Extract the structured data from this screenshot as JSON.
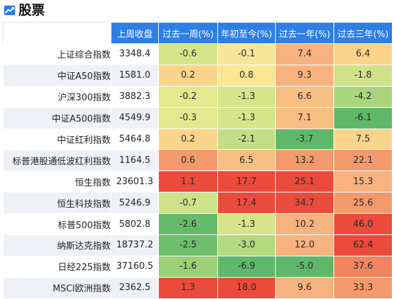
{
  "header": {
    "icon": "trend-chart-icon",
    "title": "股票"
  },
  "table": {
    "columns": [
      "上周收盘",
      "过去一周(%)",
      "年初至今(%)",
      "过去一年(%)",
      "过去三年(%)"
    ],
    "rows": [
      {
        "name": "上证综合指数",
        "close": "3348.4",
        "values": [
          "-0.6",
          "-0.1",
          "7.4",
          "6.4"
        ],
        "colors": [
          "#d7e58a",
          "#f6e69a",
          "#f8b27f",
          "#fbd48c"
        ]
      },
      {
        "name": "中证A50指数",
        "close": "1581.0",
        "values": [
          "0.2",
          "0.8",
          "9.3",
          "-1.8"
        ],
        "colors": [
          "#fbd48c",
          "#f9e796",
          "#f8b27f",
          "#cfe28a"
        ]
      },
      {
        "name": "沪深300指数",
        "close": "3882.3",
        "values": [
          "-0.2",
          "-1.3",
          "6.6",
          "-4.2"
        ],
        "colors": [
          "#e3e98f",
          "#d7e58a",
          "#f8bf82",
          "#a9d67c"
        ]
      },
      {
        "name": "中证A500指数",
        "close": "4549.9",
        "values": [
          "-0.3",
          "-1.3",
          "7.1",
          "-6.1"
        ],
        "colors": [
          "#e3e98f",
          "#d7e58a",
          "#f8bf82",
          "#5fb86a"
        ]
      },
      {
        "name": "中证红利指数",
        "close": "5464.8",
        "values": [
          "0.2",
          "-2.1",
          "-3.7",
          "7.5"
        ],
        "colors": [
          "#fbd48c",
          "#c3de86",
          "#5fb86a",
          "#fbd48c"
        ]
      },
      {
        "name": "标普港股通低波红利指数",
        "close": "1164.5",
        "values": [
          "0.6",
          "6.5",
          "13.2",
          "22.1"
        ],
        "colors": [
          "#f39a6c",
          "#f8bf82",
          "#f39a6c",
          "#f39a6c"
        ]
      },
      {
        "name": "恒生指数",
        "close": "23601.3",
        "values": [
          "1.1",
          "17.7",
          "25.1",
          "15.3"
        ],
        "colors": [
          "#ea4b3c",
          "#ea4b3c",
          "#ea4b3c",
          "#f8b27f"
        ]
      },
      {
        "name": "恒生科技指数",
        "close": "5246.9",
        "values": [
          "-0.7",
          "17.4",
          "34.7",
          "25.6"
        ],
        "colors": [
          "#cfe28a",
          "#ea4b3c",
          "#ea4b3c",
          "#f39a6c"
        ]
      },
      {
        "name": "标普500指数",
        "close": "5802.8",
        "values": [
          "-2.6",
          "-1.3",
          "10.2",
          "46.0"
        ],
        "colors": [
          "#66bb6a",
          "#d7e58a",
          "#f8b27f",
          "#ea4b3c"
        ]
      },
      {
        "name": "纳斯达克指数",
        "close": "18737.2",
        "values": [
          "-2.5",
          "-3.0",
          "12.0",
          "62.4"
        ],
        "colors": [
          "#6dbd6b",
          "#b4d97f",
          "#f8b27f",
          "#ea4b3c"
        ]
      },
      {
        "name": "日经225指数",
        "close": "37160.5",
        "values": [
          "-1.6",
          "-6.9",
          "-5.0",
          "37.6"
        ],
        "colors": [
          "#9ccf76",
          "#5fb86a",
          "#5fb86a",
          "#f08560"
        ]
      },
      {
        "name": "MSCI欧洲指数",
        "close": "2362.5",
        "values": [
          "1.3",
          "18.0",
          "9.6",
          "33.3"
        ],
        "colors": [
          "#ea4b3c",
          "#ea4b3c",
          "#f8b27f",
          "#f39a6c"
        ]
      }
    ]
  }
}
